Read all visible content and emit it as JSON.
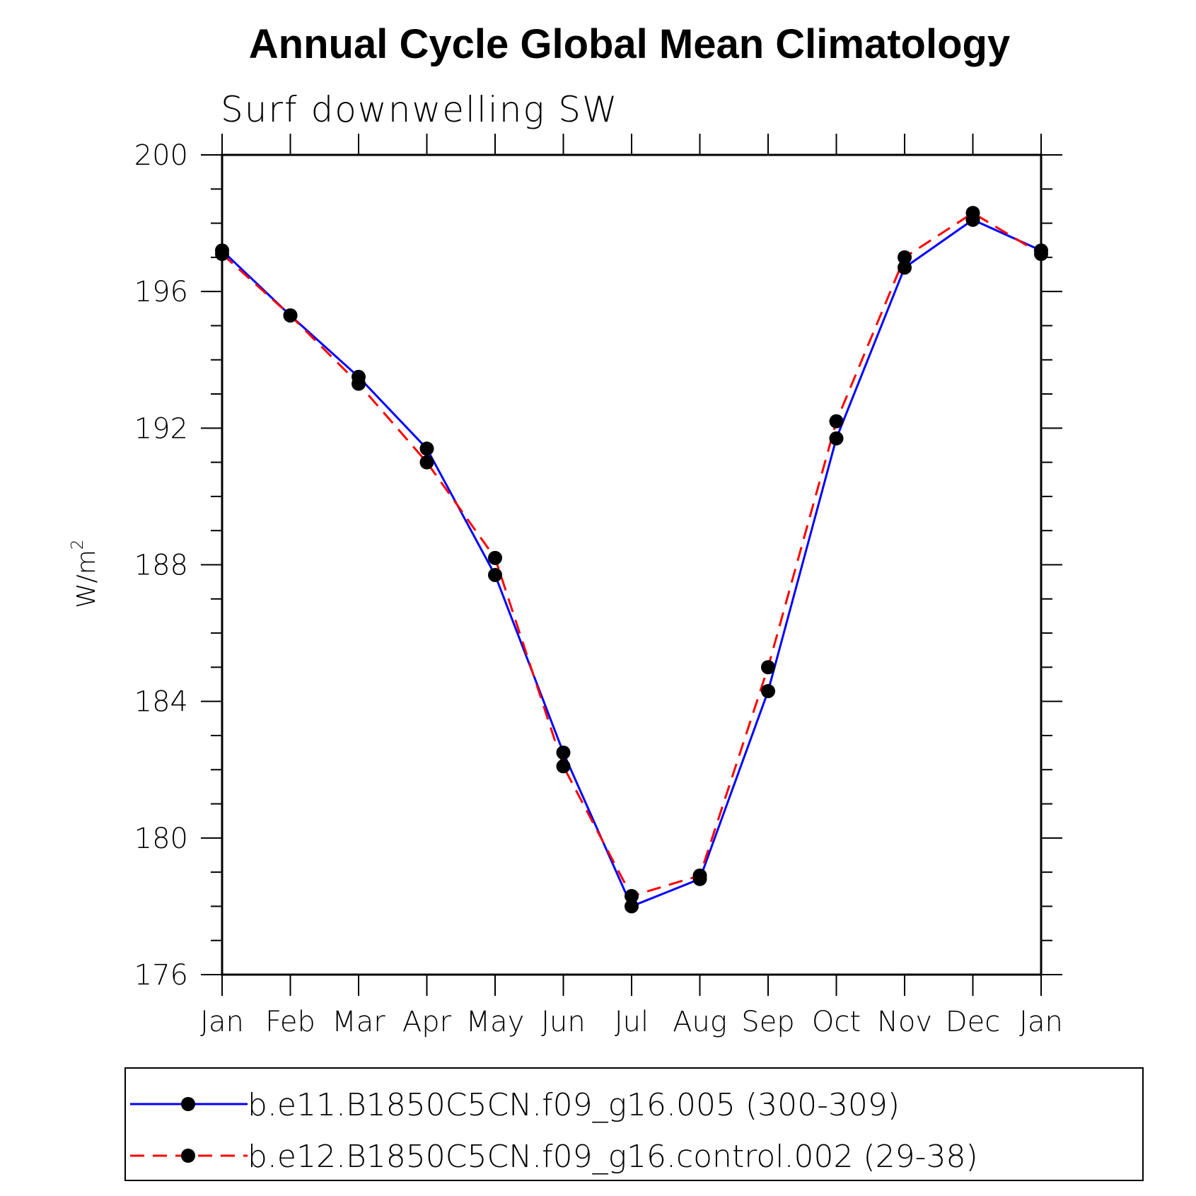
{
  "chart_data": {
    "type": "line",
    "title": "Annual Cycle Global Mean Climatology",
    "subtitle": "Surf downwelling SW",
    "ylabel": "W/m",
    "ylabel_superscript": "2",
    "xlabel": "",
    "ylim": [
      176,
      200
    ],
    "yticks": [
      176,
      180,
      184,
      188,
      192,
      196,
      200
    ],
    "categories": [
      "Jan",
      "Feb",
      "Mar",
      "Apr",
      "May",
      "Jun",
      "Jul",
      "Aug",
      "Sep",
      "Oct",
      "Nov",
      "Dec",
      "Jan"
    ],
    "grid": false,
    "legend_position": "bottom",
    "series": [
      {
        "name": "b.e11.B1850C5CN.f09_g16.005 (300-309)",
        "color": "#0000ff",
        "style": "solid",
        "marker": "filled-circle",
        "values": [
          197.2,
          195.3,
          193.5,
          191.4,
          187.7,
          182.5,
          178.0,
          178.8,
          184.3,
          191.7,
          196.7,
          198.1,
          197.2
        ]
      },
      {
        "name": "b.e12.B1850C5CN.f09_g16.control.002 (29-38)",
        "color": "#ff0000",
        "style": "dashed",
        "marker": "filled-circle",
        "values": [
          197.1,
          195.3,
          193.3,
          191.0,
          188.2,
          182.1,
          178.3,
          178.9,
          185.0,
          192.2,
          197.0,
          198.3,
          197.1
        ]
      }
    ]
  }
}
